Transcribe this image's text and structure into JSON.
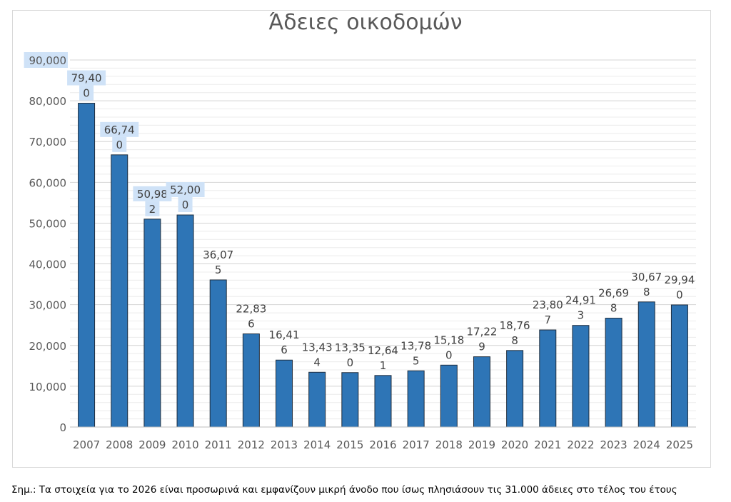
{
  "chart_data": {
    "type": "bar",
    "title": "Άδειες οικοδομών",
    "categories": [
      "2007",
      "2008",
      "2009",
      "2010",
      "2011",
      "2012",
      "2013",
      "2014",
      "2015",
      "2016",
      "2017",
      "2018",
      "2019",
      "2020",
      "2021",
      "2022",
      "2023",
      "2024",
      "2025"
    ],
    "values": [
      79400,
      66740,
      50982,
      52000,
      36075,
      22836,
      16416,
      13434,
      13350,
      12641,
      13785,
      15180,
      17229,
      18768,
      23807,
      24913,
      26698,
      30678,
      29940
    ],
    "data_labels": [
      [
        "79,40",
        "0"
      ],
      [
        "66,74",
        "0"
      ],
      [
        "50,98",
        "2"
      ],
      [
        "52,00",
        "0"
      ],
      [
        "36,07",
        "5"
      ],
      [
        "22,83",
        "6"
      ],
      [
        "16,41",
        "6"
      ],
      [
        "13,43",
        "4"
      ],
      [
        "13,35",
        "0"
      ],
      [
        "12,64",
        "1"
      ],
      [
        "13,78",
        "5"
      ],
      [
        "15,18",
        "0"
      ],
      [
        "17,22",
        "9"
      ],
      [
        "18,76",
        "8"
      ],
      [
        "23,80",
        "7"
      ],
      [
        "24,91",
        "3"
      ],
      [
        "26,69",
        "8"
      ],
      [
        "30,67",
        "8"
      ],
      [
        "29,94",
        "0"
      ]
    ],
    "highlighted_labels": [
      0,
      1,
      2,
      3
    ],
    "y_ticks": [
      "0",
      "10,000",
      "20,000",
      "30,000",
      "40,000",
      "50,000",
      "60,000",
      "70,000",
      "80,000",
      "90,000"
    ],
    "ylim": [
      0,
      90000
    ],
    "grid": true,
    "bar_color": "#2e75b6",
    "highlight_color": "#cfe2f7"
  },
  "footnote": "Σημ.: Τα στοιχεία για το 2026 είναι προσωρινά και εμφανίζουν μικρή άνοδο που ίσως πλησιάσουν τις 31.000 άδειες στο τέλος του έτους"
}
